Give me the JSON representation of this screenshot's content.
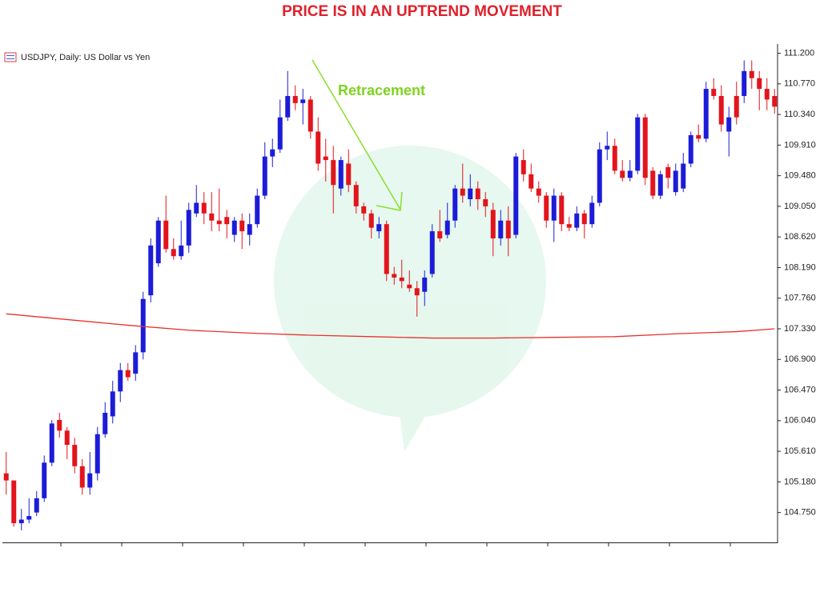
{
  "chart_data": {
    "type": "candlestick",
    "title": "PRICE IS IN AN UPTREND MOVEMENT",
    "subtitle": "USDJPY, Daily:  US Dollar vs Yen",
    "annotation": "Retracement",
    "up_color": "#1c1cd8",
    "down_color": "#e3141c",
    "categories": [
      null,
      null,
      null,
      null,
      null,
      null,
      null,
      null,
      null,
      null,
      null,
      null,
      null,
      null,
      null,
      null,
      null,
      null,
      null,
      null,
      null,
      null,
      null,
      null,
      null,
      null,
      null,
      null,
      null,
      null,
      null,
      null,
      null,
      null,
      null,
      null,
      null,
      null,
      null,
      null,
      null,
      null,
      null,
      null,
      null,
      null,
      null,
      null,
      null,
      null,
      null,
      null,
      null,
      null,
      null,
      null,
      null,
      null,
      null,
      null,
      null,
      null,
      null,
      null,
      null,
      null,
      null,
      null,
      null,
      null,
      null,
      null,
      null,
      null,
      null,
      null,
      null,
      null,
      null,
      null,
      null,
      null,
      null,
      null,
      null,
      null,
      null,
      null,
      null,
      null,
      null,
      null,
      null,
      null,
      null,
      null,
      null,
      null,
      null,
      null,
      null,
      null
    ],
    "open": [
      105.3,
      105.2,
      104.6,
      104.65,
      104.75,
      104.95,
      105.45,
      106.05,
      105.9,
      105.7,
      105.4,
      105.1,
      105.3,
      105.85,
      106.1,
      106.45,
      106.75,
      106.7,
      107.0,
      107.8,
      108.25,
      108.85,
      108.45,
      108.35,
      108.5,
      108.95,
      109.1,
      108.95,
      108.85,
      108.9,
      108.65,
      108.85,
      108.65,
      108.8,
      109.2,
      109.75,
      109.85,
      110.3,
      110.6,
      110.5,
      110.55,
      110.1,
      109.75,
      109.7,
      109.3,
      109.65,
      109.35,
      109.05,
      108.95,
      108.7,
      108.8,
      108.1,
      108.05,
      107.95,
      107.9,
      107.85,
      108.1,
      108.7,
      108.65,
      108.85,
      109.3,
      109.15,
      109.3,
      109.15,
      109.0,
      108.6,
      108.85,
      108.65,
      109.7,
      109.5,
      109.3,
      109.2,
      108.85,
      109.2,
      108.8,
      108.75,
      108.95,
      108.8,
      109.1,
      109.85,
      109.9,
      109.55,
      109.45,
      109.55,
      110.3,
      109.55,
      109.2,
      109.6,
      109.25,
      109.3,
      109.65,
      110.05,
      110.0,
      110.7,
      110.6,
      110.1,
      110.6,
      110.6,
      110.95,
      110.85,
      110.7,
      110.6
    ],
    "high": [
      105.6,
      105.2,
      104.8,
      104.95,
      105.05,
      105.55,
      106.05,
      106.15,
      105.95,
      105.8,
      105.5,
      105.6,
      105.95,
      106.3,
      106.6,
      106.85,
      106.85,
      107.1,
      107.85,
      108.6,
      108.9,
      109.2,
      108.6,
      108.85,
      109.1,
      109.35,
      109.25,
      109.25,
      109.3,
      109.0,
      108.9,
      108.95,
      108.95,
      109.3,
      109.95,
      110.0,
      110.55,
      110.95,
      110.75,
      110.7,
      110.6,
      110.3,
      110.0,
      109.9,
      109.75,
      109.85,
      109.4,
      109.1,
      109.0,
      108.9,
      108.85,
      108.2,
      108.3,
      108.15,
      108.0,
      108.15,
      108.8,
      109.0,
      109.1,
      109.35,
      109.65,
      109.5,
      109.4,
      109.25,
      109.1,
      109.0,
      109.05,
      109.8,
      109.85,
      109.65,
      109.4,
      109.25,
      109.3,
      109.25,
      108.9,
      109.05,
      109.0,
      109.2,
      109.95,
      110.1,
      110.0,
      109.7,
      109.7,
      110.35,
      110.35,
      109.6,
      109.55,
      109.65,
      109.65,
      109.8,
      110.1,
      110.2,
      110.8,
      110.85,
      110.75,
      110.45,
      110.8,
      111.1,
      111.1,
      110.95,
      110.85,
      110.7
    ],
    "low": [
      105.0,
      104.55,
      104.5,
      104.6,
      104.7,
      104.9,
      105.4,
      105.8,
      105.5,
      105.3,
      105.0,
      105.0,
      105.2,
      105.8,
      106.0,
      106.3,
      106.6,
      106.6,
      106.9,
      107.7,
      108.2,
      108.4,
      108.3,
      108.3,
      108.4,
      108.9,
      108.8,
      108.7,
      108.7,
      108.6,
      108.55,
      108.45,
      108.5,
      108.75,
      109.15,
      109.6,
      109.8,
      110.25,
      110.4,
      110.2,
      110.0,
      109.55,
      109.4,
      108.95,
      109.2,
      109.25,
      108.95,
      108.85,
      108.6,
      108.6,
      108.0,
      107.95,
      107.9,
      107.85,
      107.5,
      107.65,
      108.05,
      108.55,
      108.6,
      108.75,
      109.1,
      109.05,
      109.0,
      108.9,
      108.35,
      108.5,
      108.35,
      108.6,
      109.4,
      109.25,
      109.1,
      108.75,
      108.55,
      108.7,
      108.7,
      108.7,
      108.6,
      108.75,
      109.05,
      109.7,
      109.5,
      109.4,
      109.4,
      109.5,
      109.35,
      109.15,
      109.15,
      109.3,
      109.2,
      109.25,
      109.6,
      109.95,
      109.95,
      110.55,
      110.1,
      109.75,
      110.2,
      110.5,
      110.7,
      110.4,
      110.4,
      110.35
    ],
    "close": [
      105.2,
      104.6,
      104.65,
      104.7,
      104.95,
      105.45,
      106.0,
      105.9,
      105.7,
      105.4,
      105.1,
      105.3,
      105.85,
      106.15,
      106.45,
      106.75,
      106.65,
      107.0,
      107.75,
      108.5,
      108.85,
      108.45,
      108.35,
      108.5,
      109.0,
      109.1,
      108.95,
      108.85,
      108.8,
      108.8,
      108.85,
      108.7,
      108.8,
      109.2,
      109.75,
      109.85,
      110.3,
      110.6,
      110.5,
      110.55,
      110.1,
      109.65,
      109.7,
      109.35,
      109.7,
      109.35,
      109.05,
      108.95,
      108.75,
      108.8,
      108.1,
      108.05,
      108.0,
      107.9,
      107.8,
      108.05,
      108.7,
      108.6,
      108.85,
      109.3,
      109.2,
      109.3,
      109.15,
      109.05,
      108.6,
      108.85,
      108.6,
      109.75,
      109.5,
      109.3,
      109.2,
      108.85,
      109.2,
      108.8,
      108.75,
      108.95,
      108.8,
      109.1,
      109.85,
      109.9,
      109.55,
      109.45,
      109.55,
      110.3,
      109.45,
      109.2,
      109.5,
      109.45,
      109.55,
      109.65,
      110.05,
      110.0,
      110.7,
      110.6,
      110.2,
      110.3,
      110.3,
      110.95,
      110.85,
      110.7,
      110.55,
      110.45
    ],
    "overlay": {
      "type": "line",
      "color": "#e8322a",
      "x": [
        0,
        8,
        16,
        24,
        32,
        40,
        48,
        56,
        64,
        72,
        80,
        88,
        96,
        101
      ],
      "values": [
        107.54,
        107.46,
        107.38,
        107.31,
        107.27,
        107.24,
        107.22,
        107.2,
        107.2,
        107.21,
        107.22,
        107.26,
        107.29,
        107.33
      ]
    },
    "ylim": [
      104.33,
      111.33
    ],
    "yticks": [
      {
        "value": 104.75,
        "label": "104.750"
      },
      {
        "value": 105.18,
        "label": "105.180"
      },
      {
        "value": 105.61,
        "label": "105.610"
      },
      {
        "value": 106.04,
        "label": "106.040"
      },
      {
        "value": 106.47,
        "label": "106.470"
      },
      {
        "value": 106.9,
        "label": "106.900"
      },
      {
        "value": 107.33,
        "label": "107.330"
      },
      {
        "value": 107.76,
        "label": "107.760"
      },
      {
        "value": 108.19,
        "label": "108.190"
      },
      {
        "value": 108.62,
        "label": "108.620"
      },
      {
        "value": 109.05,
        "label": "109.050"
      },
      {
        "value": 109.48,
        "label": "109.480"
      },
      {
        "value": 109.91,
        "label": "109.910"
      },
      {
        "value": 110.34,
        "label": "110.340"
      },
      {
        "value": 110.77,
        "label": "110.770"
      },
      {
        "value": 111.2,
        "label": "111.200"
      }
    ],
    "grid": false
  }
}
